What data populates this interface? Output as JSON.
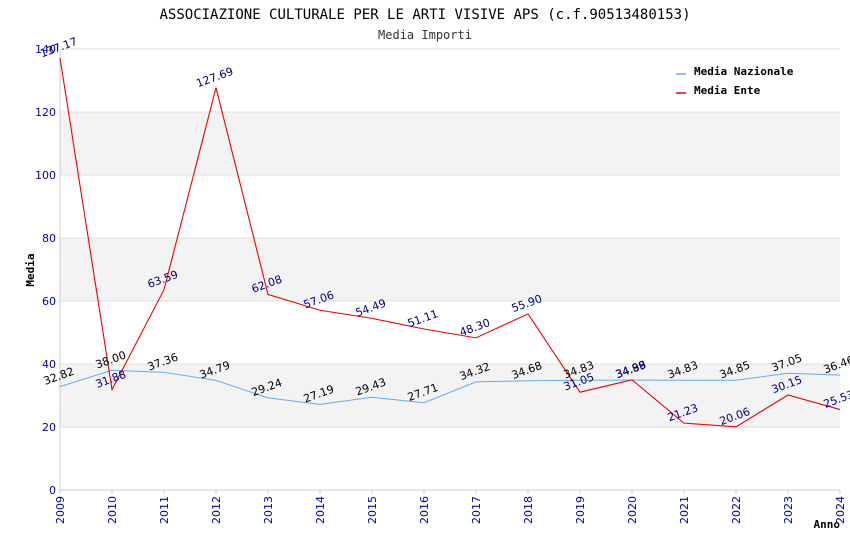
{
  "chart_data": {
    "type": "line",
    "title": "ASSOCIAZIONE CULTURALE PER LE ARTI VISIVE APS (c.f.90513480153)",
    "subtitle": "Media Importi",
    "xlabel": "Anno",
    "ylabel": "Media",
    "ylim": [
      0,
      140
    ],
    "yticks": [
      "0",
      "20",
      "40",
      "60",
      "80",
      "100",
      "120",
      "140"
    ],
    "categories": [
      "2009",
      "2010",
      "2011",
      "2012",
      "2013",
      "2014",
      "2015",
      "2016",
      "2017",
      "2018",
      "2019",
      "2020",
      "2021",
      "2022",
      "2023",
      "2024"
    ],
    "grid": "horizontal bands",
    "legend_position": "top-right",
    "series": [
      {
        "name": "Media Nazionale",
        "color": "#66aaee",
        "label_color": "#000000",
        "values": [
          32.82,
          38.0,
          37.36,
          34.79,
          29.24,
          27.19,
          29.43,
          27.71,
          34.32,
          34.68,
          34.83,
          34.89,
          34.83,
          34.85,
          37.05,
          36.46
        ],
        "labels": [
          "32.82",
          "38.00",
          "37.36",
          "34.79",
          "29.24",
          "27.19",
          "29.43",
          "27.71",
          "34.32",
          "34.68",
          "34.83",
          "34.89",
          "34.83",
          "34.85",
          "37.05",
          "36.46"
        ]
      },
      {
        "name": "Media Ente",
        "color": "#ee0000",
        "label_color": "#000080",
        "values": [
          137.17,
          31.88,
          63.59,
          127.69,
          62.08,
          57.06,
          54.49,
          51.11,
          48.3,
          55.9,
          31.05,
          34.98,
          21.23,
          20.06,
          30.15,
          25.53
        ],
        "labels": [
          "137.17",
          "31.88",
          "63.59",
          "127.69",
          "62.08",
          "57.06",
          "54.49",
          "51.11",
          "48.30",
          "55.90",
          "31.05",
          "34.98",
          "21.23",
          "20.06",
          "30.15",
          "25.53"
        ]
      }
    ]
  }
}
